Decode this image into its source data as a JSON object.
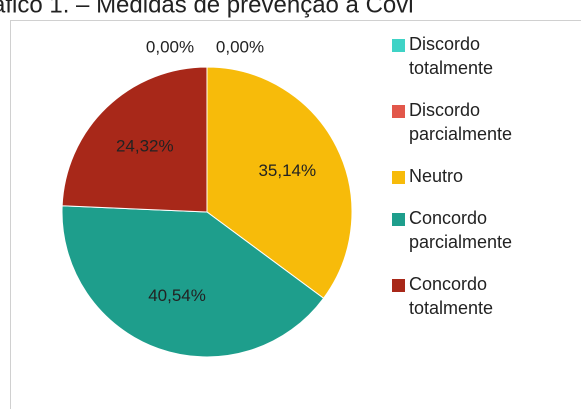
{
  "chart_data": {
    "type": "pie",
    "title": "áfico 1. – Medidas de prevenção à Covi",
    "categories": [
      "Discordo totalmente",
      "Discordo parcialmente",
      "Neutro",
      "Concordo parcialmente",
      "Concordo totalmente"
    ],
    "values": [
      0,
      0,
      35.14,
      40.54,
      24.32
    ],
    "value_labels": [
      "0,00%",
      "0,00%",
      "35,14%",
      "40,54%",
      "24,32%"
    ],
    "colors": [
      "#3fd3c6",
      "#e2574a",
      "#f7bb0a",
      "#1e9e8c",
      "#a82819"
    ],
    "legend": "right"
  }
}
